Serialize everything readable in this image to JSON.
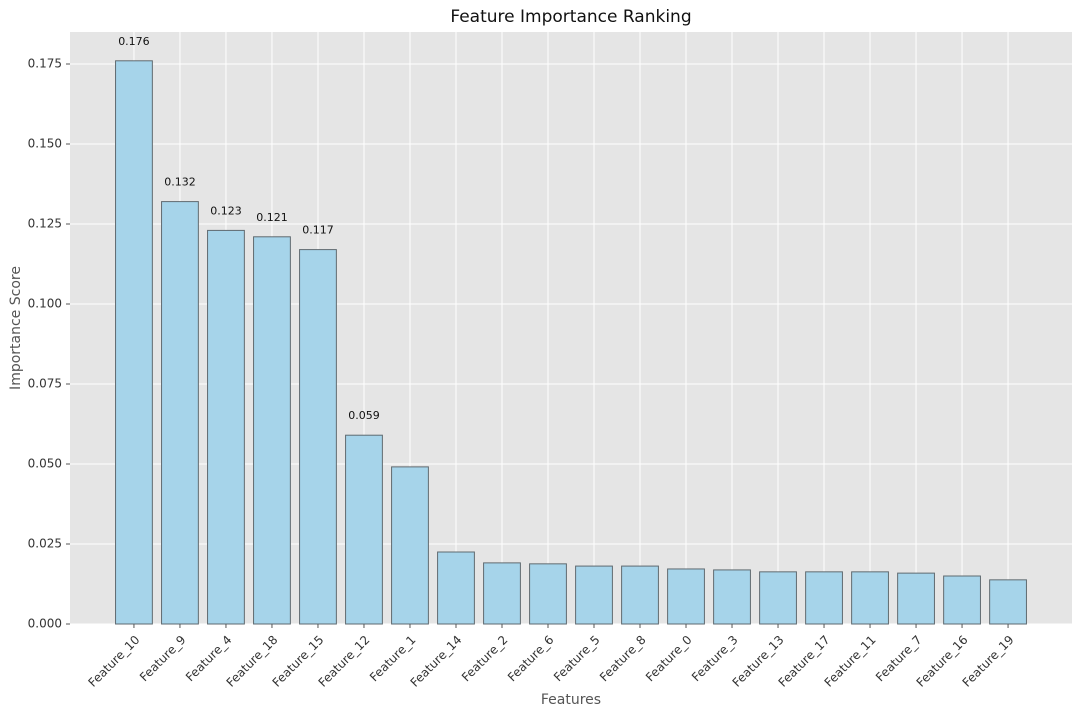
{
  "chart_data": {
    "type": "bar",
    "title": "Feature Importance Ranking",
    "x_label": "Features",
    "y_label": "Importance Score",
    "categories": [
      "Feature_10",
      "Feature_9",
      "Feature_4",
      "Feature_18",
      "Feature_15",
      "Feature_12",
      "Feature_1",
      "Feature_14",
      "Feature_2",
      "Feature_6",
      "Feature_5",
      "Feature_8",
      "Feature_0",
      "Feature_3",
      "Feature_13",
      "Feature_17",
      "Feature_11",
      "Feature_7",
      "Feature_16",
      "Feature_19"
    ],
    "values": [
      0.176,
      0.132,
      0.123,
      0.121,
      0.117,
      0.059,
      0.0491,
      0.0225,
      0.0191,
      0.0188,
      0.0181,
      0.0181,
      0.0172,
      0.0169,
      0.0163,
      0.0163,
      0.0163,
      0.0159,
      0.015,
      0.0138
    ],
    "value_labels": [
      "0.176",
      "0.132",
      "0.123",
      "0.121",
      "0.117",
      "0.059",
      null,
      null,
      null,
      null,
      null,
      null,
      null,
      null,
      null,
      null,
      null,
      null,
      null,
      null
    ],
    "color": "#a6d4ea",
    "edge_color": "#5f6a70",
    "ylim": [
      0,
      0.185
    ],
    "yticks": [
      {
        "value": 0,
        "label": "0.000"
      },
      0.025,
      {
        "value": 0.05,
        "label": "0.050"
      },
      0.075,
      {
        "value": 0.1,
        "label": "0.100"
      },
      0.125,
      {
        "value": 0.15,
        "label": "0.150"
      },
      0.175
    ],
    "grid": true
  }
}
